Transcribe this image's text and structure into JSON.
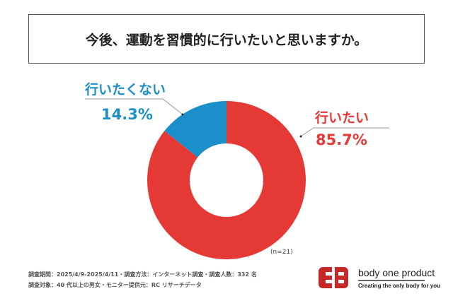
{
  "title": "今後、運動を習慣的に行いたいと思いますか。",
  "chart_data": {
    "type": "pie",
    "donut": true,
    "categories": [
      "行いたい",
      "行いたくない"
    ],
    "values": [
      85.7,
      14.3
    ],
    "labels": [
      "85.7%",
      "14.3%"
    ],
    "colors": [
      "#e53935",
      "#1a8fc9"
    ],
    "sample_note": "(n=21)"
  },
  "notes": [
    "調査期間：2025/4/9-2025/4/11・調査方法：インターネット調査・調査人数：332 名",
    "調査対象：40 代以上の男女・モニター提供元：RC リサーチデータ"
  ],
  "logo": {
    "name": "body one product",
    "tagline": "Creating the only body for you",
    "color": "#c62828"
  }
}
